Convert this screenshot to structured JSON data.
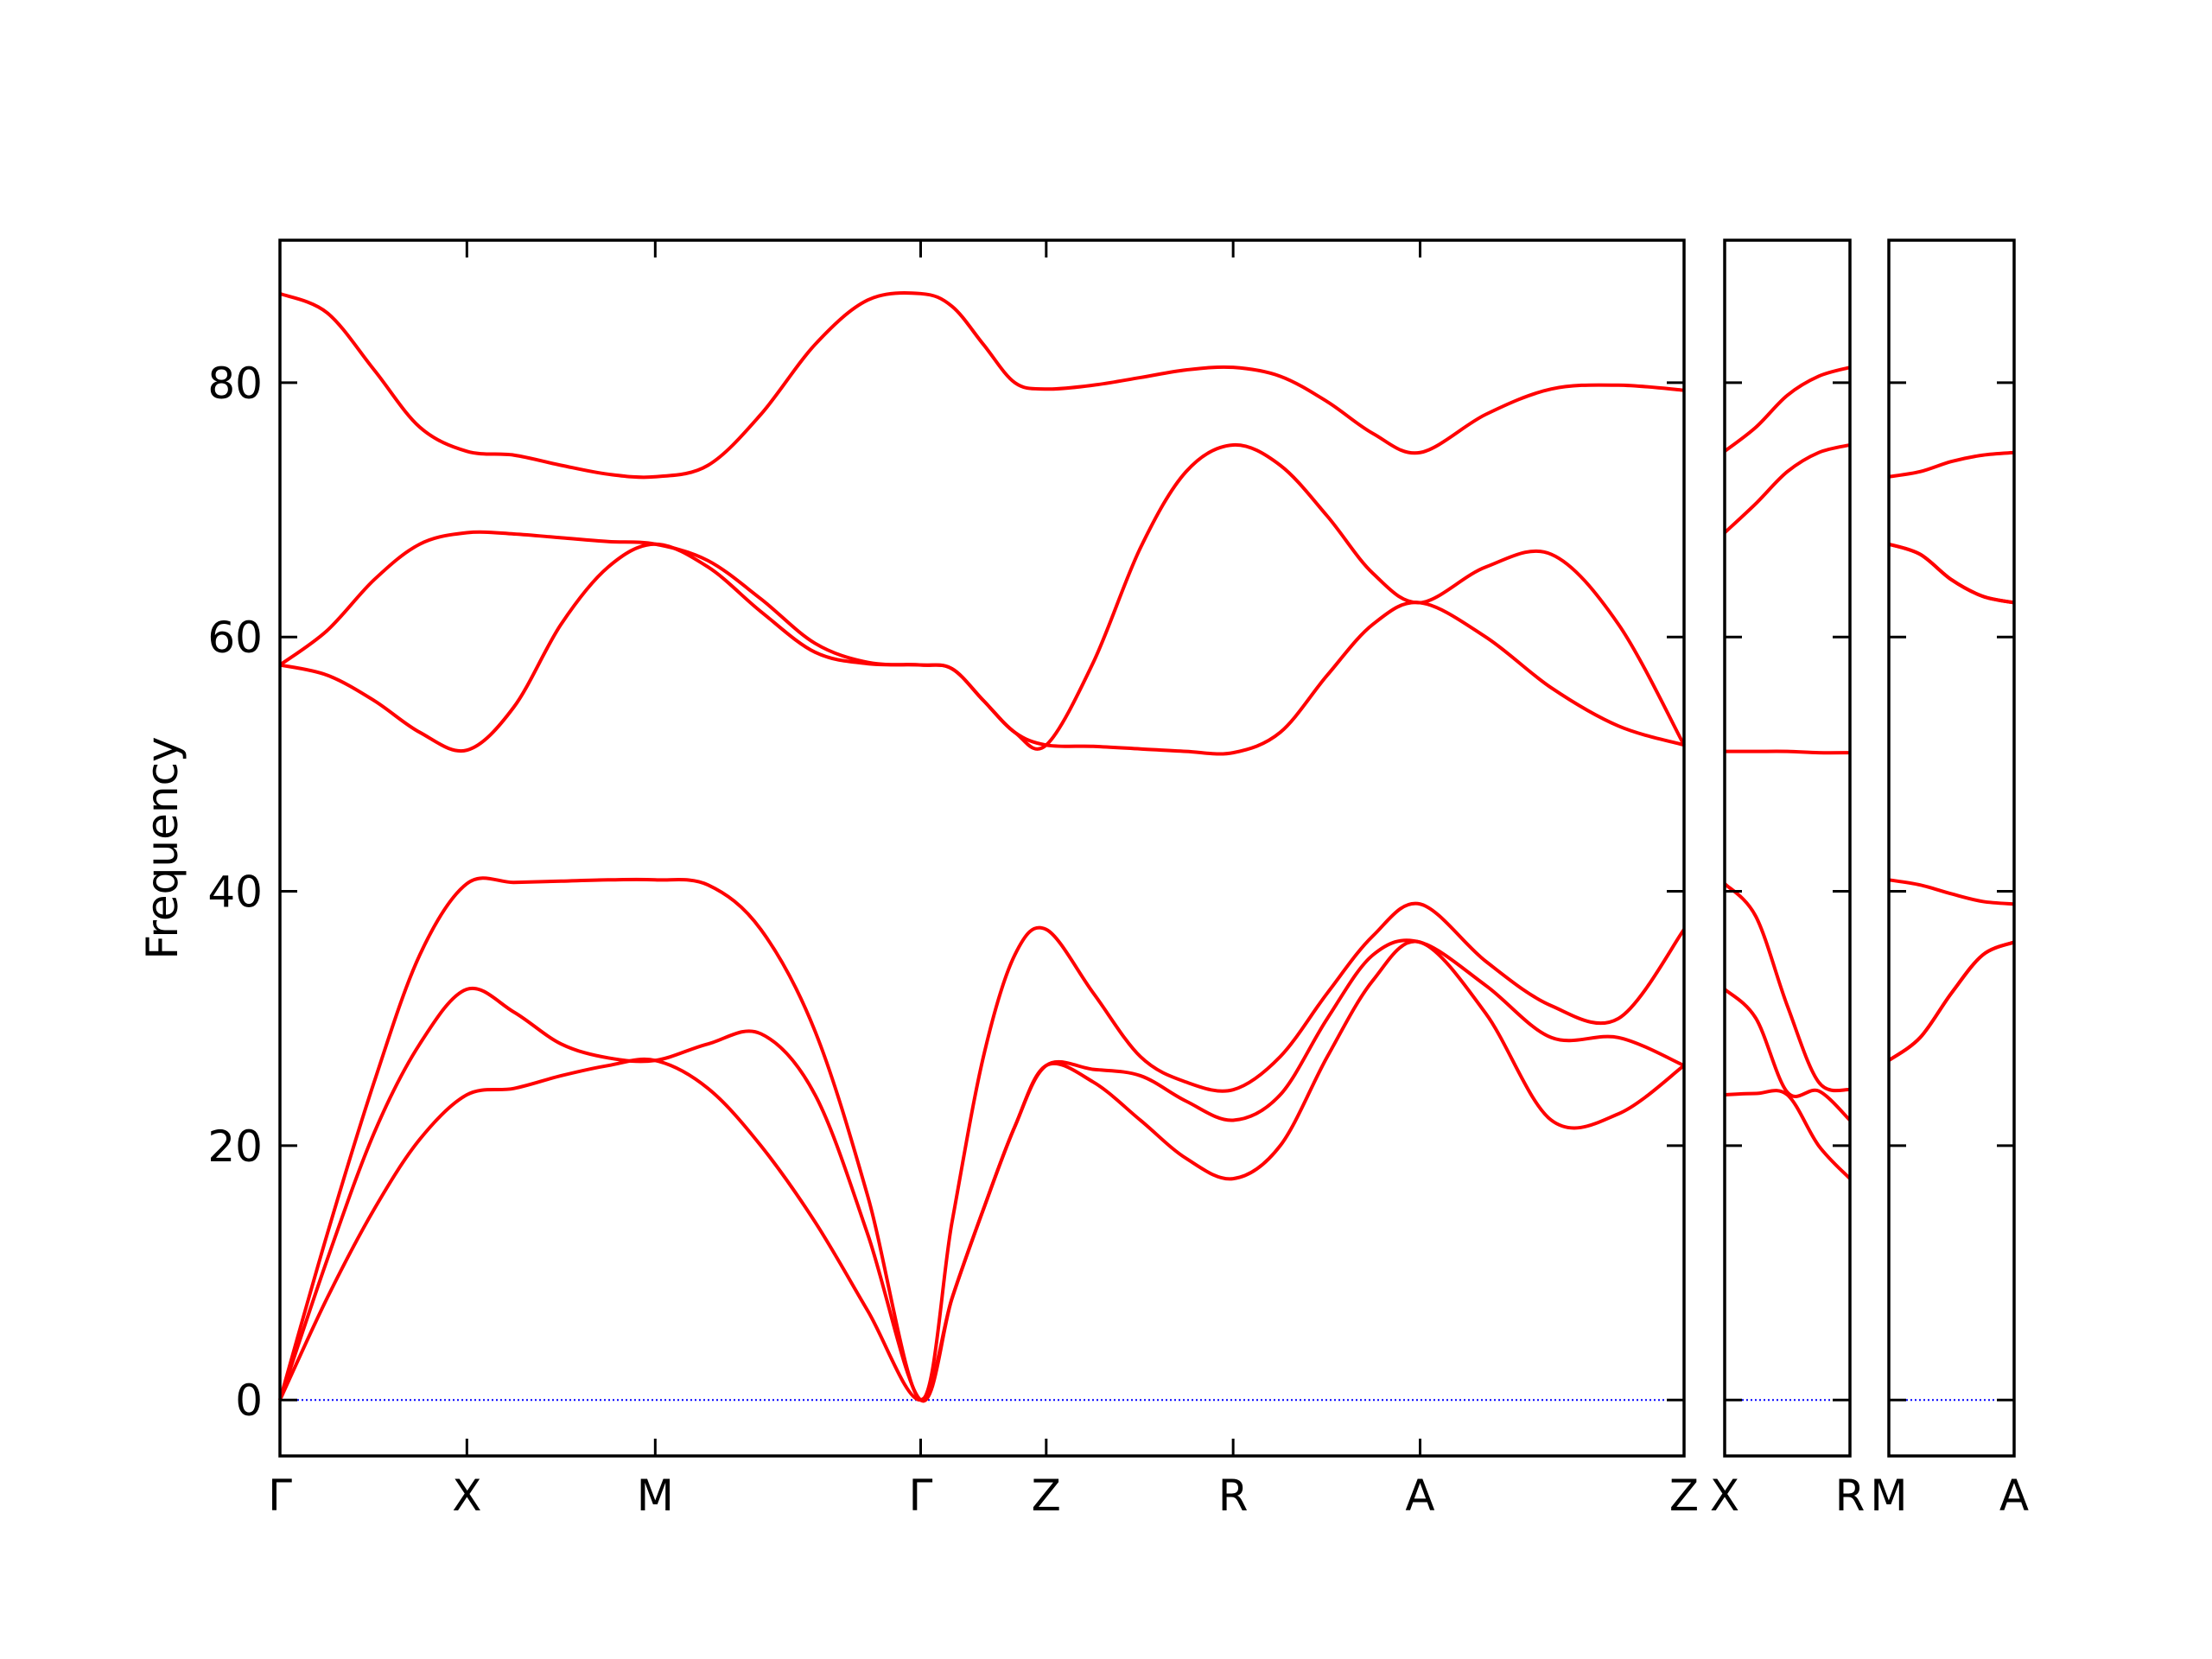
{
  "chart_data": [
    {
      "type": "line",
      "ylabel": "Frequency",
      "x": [
        0,
        0.33,
        0.66,
        0.98,
        1.31,
        1.64,
        1.97,
        2.3,
        2.63,
        3.0,
        3.37,
        3.75,
        4.12,
        4.49,
        4.71,
        4.93,
        5.15,
        5.37,
        5.7,
        6.03,
        6.35,
        6.68,
        7.01,
        7.34,
        7.66,
        7.99,
        8.45,
        8.91,
        9.38,
        9.84
      ],
      "xlim": [
        0,
        9.84
      ],
      "xticks": [
        {
          "value": 0,
          "label": "Γ"
        },
        {
          "value": 1.31,
          "label": "X"
        },
        {
          "value": 2.63,
          "label": "M"
        },
        {
          "value": 4.49,
          "label": "Γ"
        },
        {
          "value": 5.37,
          "label": "Z"
        },
        {
          "value": 6.68,
          "label": "R"
        },
        {
          "value": 7.99,
          "label": "A"
        },
        {
          "value": 9.84,
          "label": "Z"
        }
      ],
      "ylim": [
        -4.4,
        91.2
      ],
      "yticks": [
        0,
        20,
        40,
        60,
        80
      ],
      "show_ytick_labels": true,
      "zero_line": {
        "value": 0,
        "color": "#0000ff",
        "style": "dotted"
      },
      "series": [
        {
          "color": "#ff0000",
          "values": [
            0,
            8,
            15,
            20.5,
            24,
            24.5,
            25.5,
            26.3,
            26.7,
            24.5,
            20,
            14,
            7,
            0,
            8,
            15,
            21.5,
            26.3,
            25,
            22,
            19,
            17.4,
            20,
            27,
            33,
            36,
            30.4,
            22,
            22.5,
            26.3
          ]
        },
        {
          "color": "#ff0000",
          "values": [
            0,
            11,
            21,
            28,
            32.3,
            30.5,
            28,
            26.9,
            26.7,
            28,
            28.8,
            24,
            13,
            0,
            8,
            15,
            21.5,
            26.3,
            26,
            25.5,
            23.5,
            22,
            24,
            30,
            35,
            36,
            32.6,
            28.5,
            28.5,
            26.3
          ]
        },
        {
          "color": "#ff0000",
          "values": [
            0,
            13,
            25,
            35,
            40.6,
            40.7,
            40.8,
            40.9,
            40.9,
            40.5,
            37,
            29,
            16,
            0,
            14,
            27,
            35,
            37,
            32,
            27,
            25,
            24.4,
            27,
            32,
            36.5,
            39,
            34.5,
            31,
            30,
            37
          ]
        },
        {
          "color": "#ff0000",
          "values": [
            57.8,
            57,
            55,
            52.5,
            51.1,
            54.5,
            61,
            65.5,
            67.3,
            65.5,
            62,
            58.8,
            57.9,
            57.8,
            57.5,
            55,
            52.5,
            51.5,
            51.4,
            51.2,
            51.0,
            50.9,
            52.5,
            57,
            61,
            62.7,
            60,
            56,
            53,
            51.5
          ]
        },
        {
          "color": "#ff0000",
          "values": [
            57.8,
            60.5,
            64.5,
            67.3,
            68.2,
            68.1,
            67.8,
            67.5,
            67.3,
            66,
            63,
            59.5,
            58,
            57.8,
            57.5,
            55,
            52.5,
            51.5,
            58,
            67,
            73,
            75.1,
            73.5,
            69.5,
            65,
            62.7,
            65.5,
            66.5,
            61,
            51.5
          ]
        },
        {
          "color": "#ff0000",
          "values": [
            87,
            85.5,
            81,
            76.5,
            74.6,
            74.3,
            73.5,
            72.8,
            72.6,
            73.5,
            77.5,
            83,
            86.5,
            87,
            86,
            83,
            80,
            79.5,
            79.8,
            80.4,
            81,
            81.2,
            80.5,
            78.5,
            76,
            74.5,
            77.5,
            79.5,
            79.8,
            79.4
          ]
        }
      ]
    },
    {
      "type": "line",
      "x": [
        0,
        0.22,
        0.44,
        0.66,
        0.88
      ],
      "xlim": [
        0,
        0.88
      ],
      "xticks": [
        {
          "value": 0,
          "label": "X"
        },
        {
          "value": 0.88,
          "label": "R"
        }
      ],
      "ylim": [
        -4.4,
        91.2
      ],
      "yticks": [
        0,
        20,
        40,
        60,
        80
      ],
      "show_ytick_labels": false,
      "zero_line": {
        "value": 0,
        "color": "#0000ff",
        "style": "dotted"
      },
      "series": [
        {
          "color": "#ff0000",
          "values": [
            24,
            24.1,
            24,
            20,
            17.4
          ]
        },
        {
          "color": "#ff0000",
          "values": [
            32.3,
            30,
            24.2,
            24.3,
            22
          ]
        },
        {
          "color": "#ff0000",
          "values": [
            40.6,
            38,
            31,
            25,
            24.4
          ]
        },
        {
          "color": "#ff0000",
          "values": [
            51.0,
            51.0,
            51.0,
            50.9,
            50.9
          ]
        },
        {
          "color": "#ff0000",
          "values": [
            68.2,
            70.5,
            73,
            74.5,
            75.1
          ]
        },
        {
          "color": "#ff0000",
          "values": [
            74.6,
            76.5,
            79,
            80.5,
            81.2
          ]
        }
      ]
    },
    {
      "type": "line",
      "x": [
        0,
        0.22,
        0.44,
        0.66,
        0.88
      ],
      "xlim": [
        0,
        0.88
      ],
      "xticks": [
        {
          "value": 0,
          "label": "M"
        },
        {
          "value": 0.88,
          "label": "A"
        }
      ],
      "ylim": [
        -4.4,
        91.2
      ],
      "yticks": [
        0,
        20,
        40,
        60,
        80
      ],
      "show_ytick_labels": false,
      "zero_line": {
        "value": 0,
        "color": "#0000ff",
        "style": "dotted"
      },
      "series": [
        {
          "color": "#ff0000",
          "values": [
            26.7,
            28.5,
            32,
            35,
            36
          ]
        },
        {
          "color": "#ff0000",
          "values": [
            26.7,
            28.5,
            32,
            35,
            36
          ]
        },
        {
          "color": "#ff0000",
          "values": [
            40.9,
            40.5,
            39.8,
            39.2,
            39
          ]
        },
        {
          "color": "#ff0000",
          "values": [
            67.3,
            66.5,
            64.5,
            63.2,
            62.7
          ]
        },
        {
          "color": "#ff0000",
          "values": [
            67.3,
            66.5,
            64.5,
            63.2,
            62.7
          ]
        },
        {
          "color": "#ff0000",
          "values": [
            72.6,
            73,
            73.8,
            74.3,
            74.5
          ]
        }
      ]
    }
  ]
}
